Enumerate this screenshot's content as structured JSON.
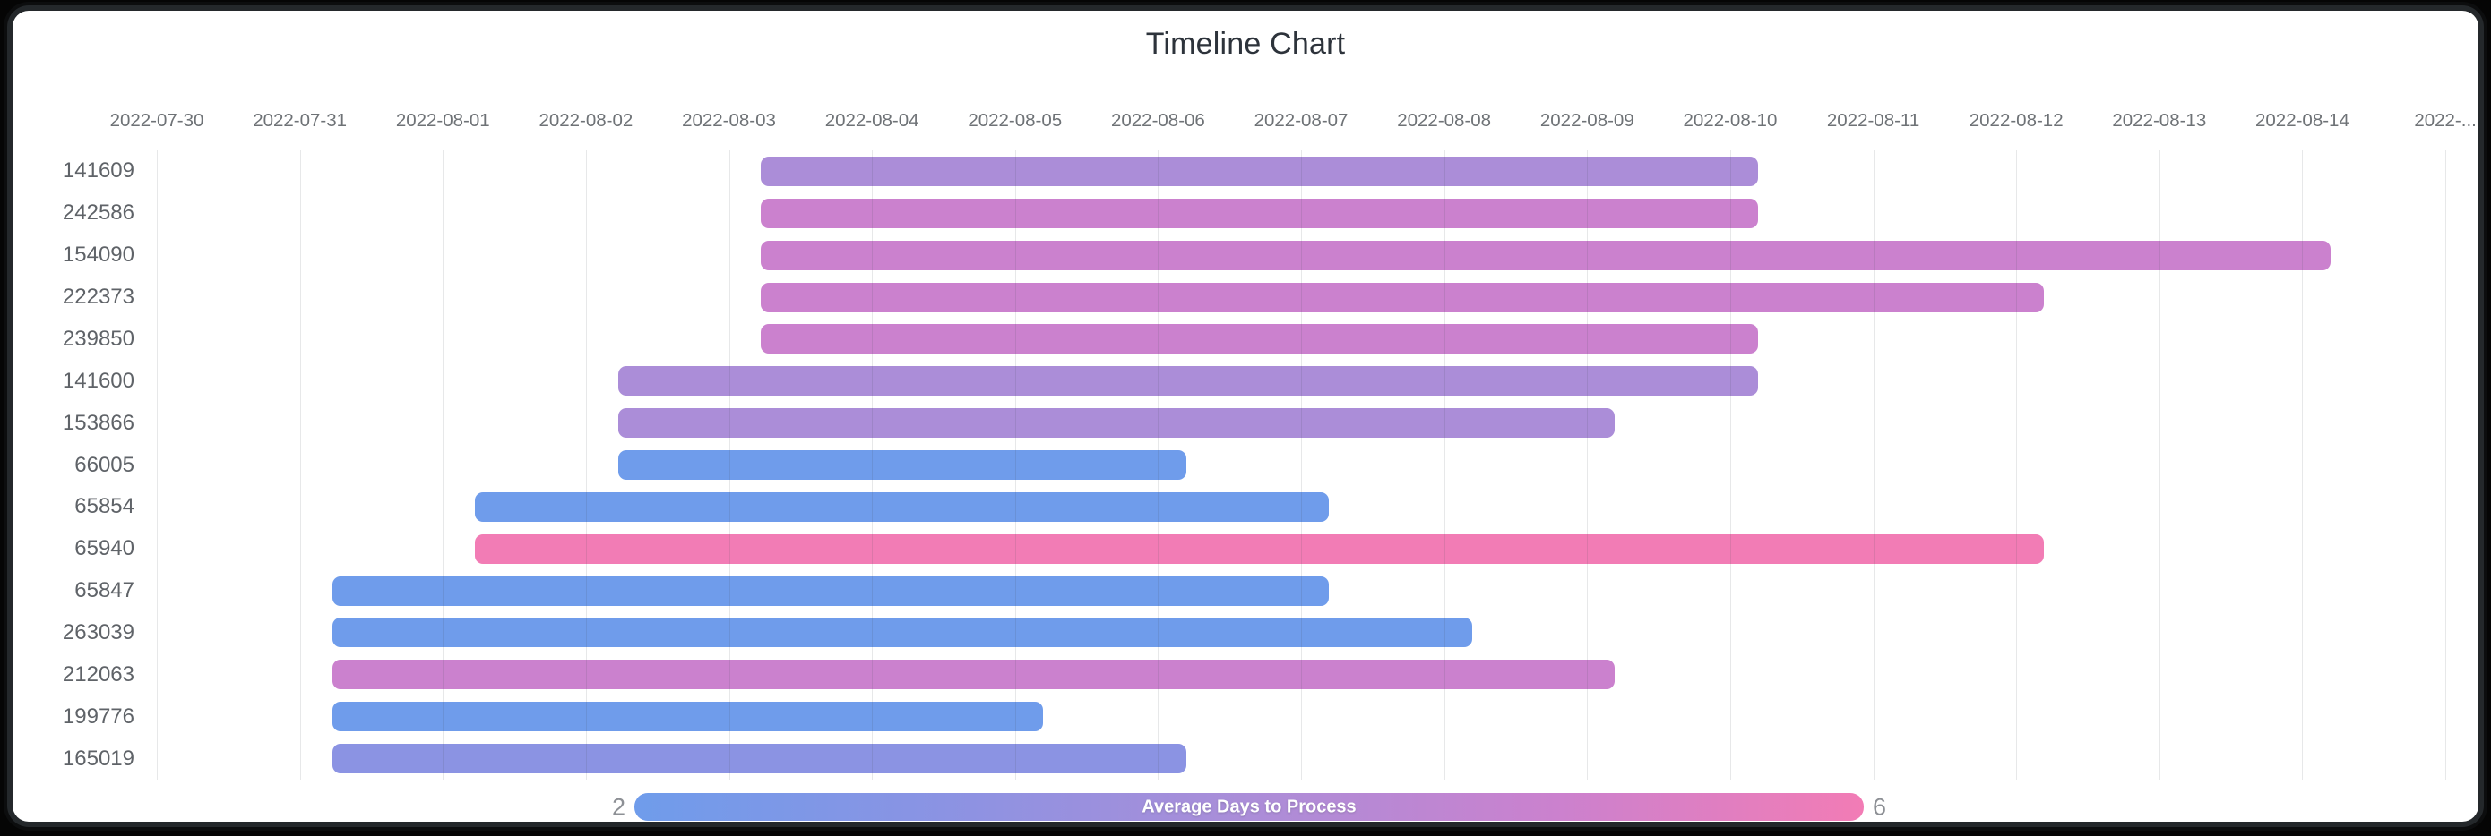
{
  "title": "Timeline Chart",
  "chart_data": {
    "type": "timeline_bar",
    "title": "Timeline Chart",
    "x_axis": {
      "start_date": "2022-07-30",
      "interval_days": 1,
      "tick_labels": [
        "2022-07-30",
        "2022-07-31",
        "2022-08-01",
        "2022-08-02",
        "2022-08-03",
        "2022-08-04",
        "2022-08-05",
        "2022-08-06",
        "2022-08-07",
        "2022-08-08",
        "2022-08-09",
        "2022-08-10",
        "2022-08-11",
        "2022-08-12",
        "2022-08-13",
        "2022-08-14",
        "2022-..."
      ]
    },
    "grid": true,
    "rows": [
      {
        "id": "141609",
        "start": "2022-08-03",
        "end": "2022-08-10",
        "duration_days": 7,
        "avg_days_to_process": 4,
        "color": "#ab8dd8"
      },
      {
        "id": "242586",
        "start": "2022-08-03",
        "end": "2022-08-10",
        "duration_days": 7,
        "avg_days_to_process": 5,
        "color": "#cb81ce"
      },
      {
        "id": "154090",
        "start": "2022-08-03",
        "end": "2022-08-14",
        "duration_days": 11,
        "avg_days_to_process": 5,
        "color": "#cb81ce"
      },
      {
        "id": "222373",
        "start": "2022-08-03",
        "end": "2022-08-12",
        "duration_days": 9,
        "avg_days_to_process": 5,
        "color": "#cb81ce"
      },
      {
        "id": "239850",
        "start": "2022-08-03",
        "end": "2022-08-10",
        "duration_days": 7,
        "avg_days_to_process": 5,
        "color": "#cb81ce"
      },
      {
        "id": "141600",
        "start": "2022-08-02",
        "end": "2022-08-10",
        "duration_days": 8,
        "avg_days_to_process": 4,
        "color": "#ab8dd8"
      },
      {
        "id": "153866",
        "start": "2022-08-02",
        "end": "2022-08-09",
        "duration_days": 7,
        "avg_days_to_process": 4,
        "color": "#ab8dd8"
      },
      {
        "id": "66005",
        "start": "2022-08-02",
        "end": "2022-08-06",
        "duration_days": 4,
        "avg_days_to_process": 2,
        "color": "#6f9ceb"
      },
      {
        "id": "65854",
        "start": "2022-08-01",
        "end": "2022-08-07",
        "duration_days": 6,
        "avg_days_to_process": 2,
        "color": "#6f9ceb"
      },
      {
        "id": "65940",
        "start": "2022-08-01",
        "end": "2022-08-12",
        "duration_days": 11,
        "avg_days_to_process": 6,
        "color": "#f27cb5"
      },
      {
        "id": "65847",
        "start": "2022-07-31",
        "end": "2022-08-07",
        "duration_days": 7,
        "avg_days_to_process": 2,
        "color": "#6f9ceb"
      },
      {
        "id": "263039",
        "start": "2022-07-31",
        "end": "2022-08-08",
        "duration_days": 8,
        "avg_days_to_process": 2,
        "color": "#6f9ceb"
      },
      {
        "id": "212063",
        "start": "2022-07-31",
        "end": "2022-08-09",
        "duration_days": 9,
        "avg_days_to_process": 5,
        "color": "#cb81ce"
      },
      {
        "id": "199776",
        "start": "2022-07-31",
        "end": "2022-08-05",
        "duration_days": 5,
        "avg_days_to_process": 2,
        "color": "#6f9ceb"
      },
      {
        "id": "165019",
        "start": "2022-07-31",
        "end": "2022-08-06",
        "duration_days": 6,
        "avg_days_to_process": 3,
        "color": "#8b93e3"
      }
    ],
    "legend": {
      "label": "Average Days to Process",
      "min": "2",
      "max": "6",
      "position": "bottom",
      "gradient": [
        "#6f9ceb",
        "#8b93e3",
        "#ab8dd8",
        "#cb81ce",
        "#f27cb5"
      ]
    }
  }
}
